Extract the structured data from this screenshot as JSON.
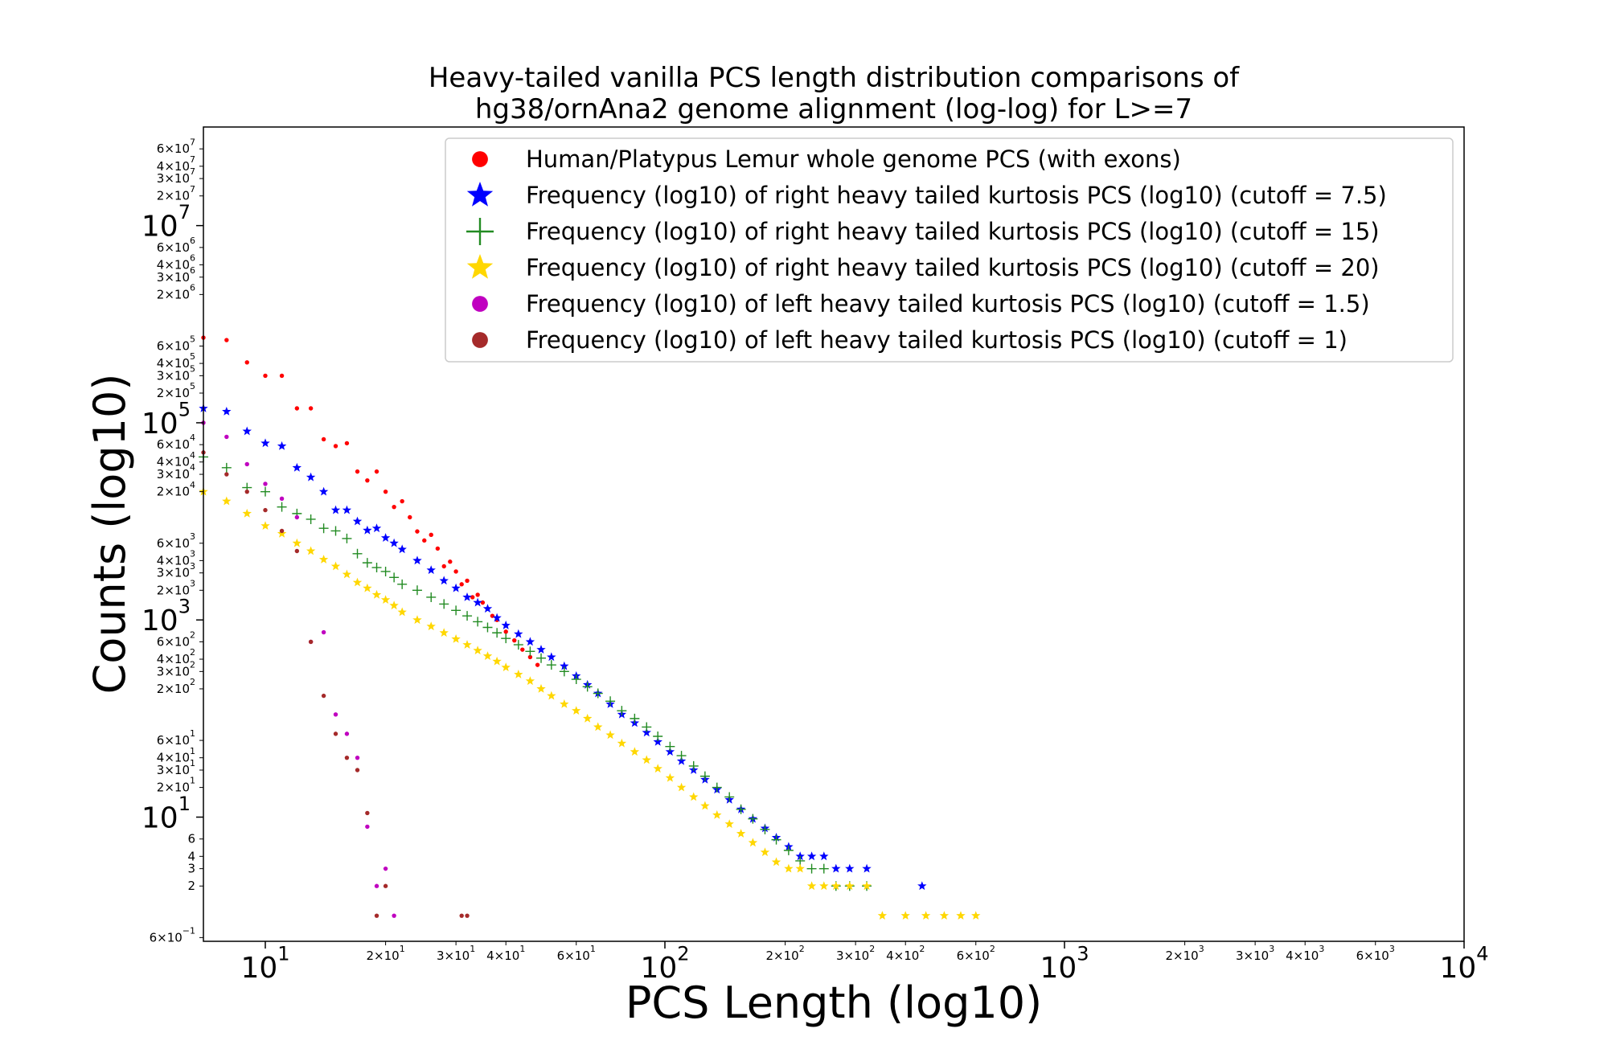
{
  "chart_data": {
    "type": "scatter",
    "title": "Heavy-tailed vanilla PCS length distribution comparisons of hg38/ornAna2 genome alignment (log-log) for L>=7",
    "title_lines": [
      "Heavy-tailed vanilla PCS length distribution comparisons of",
      "hg38/ornAna2 genome alignment (log-log) for L>=7"
    ],
    "xlabel": "PCS Length (log10)",
    "ylabel": "Counts (log10)",
    "xscale": "log",
    "yscale": "log",
    "xlim": [
      7,
      10000
    ],
    "ylim": [
      0.55,
      100000000
    ],
    "grid": false,
    "legend_position": "top-right",
    "x_major_ticks": [
      {
        "value": 10,
        "label": "10",
        "exp": "1"
      },
      {
        "value": 100,
        "label": "10",
        "exp": "2"
      },
      {
        "value": 1000,
        "label": "10",
        "exp": "3"
      },
      {
        "value": 10000,
        "label": "10",
        "exp": "4"
      }
    ],
    "x_minor_ticks": [
      {
        "value": 20,
        "label": "2×10",
        "exp": "1"
      },
      {
        "value": 30,
        "label": "3×10",
        "exp": "1"
      },
      {
        "value": 40,
        "label": "4×10",
        "exp": "1"
      },
      {
        "value": 60,
        "label": "6×10",
        "exp": "1"
      },
      {
        "value": 200,
        "label": "2×10",
        "exp": "2"
      },
      {
        "value": 300,
        "label": "3×10",
        "exp": "2"
      },
      {
        "value": 400,
        "label": "4×10",
        "exp": "2"
      },
      {
        "value": 600,
        "label": "6×10",
        "exp": "2"
      },
      {
        "value": 2000,
        "label": "2×10",
        "exp": "3"
      },
      {
        "value": 3000,
        "label": "3×10",
        "exp": "3"
      },
      {
        "value": 4000,
        "label": "4×10",
        "exp": "3"
      },
      {
        "value": 6000,
        "label": "6×10",
        "exp": "3"
      }
    ],
    "y_major_ticks": [
      {
        "value": 10,
        "label": "10",
        "exp": "1"
      },
      {
        "value": 1000,
        "label": "10",
        "exp": "3"
      },
      {
        "value": 100000,
        "label": "10",
        "exp": "5"
      },
      {
        "value": 10000000,
        "label": "10",
        "exp": "7"
      }
    ],
    "y_minor_ticks": [
      {
        "value": 0.6,
        "label": "6×10",
        "exp": "−1"
      },
      {
        "value": 2,
        "label": "2",
        "exp": ""
      },
      {
        "value": 3,
        "label": "3",
        "exp": ""
      },
      {
        "value": 4,
        "label": "4",
        "exp": ""
      },
      {
        "value": 6,
        "label": "6",
        "exp": ""
      },
      {
        "value": 20,
        "label": "2×10",
        "exp": "1"
      },
      {
        "value": 30,
        "label": "3×10",
        "exp": "1"
      },
      {
        "value": 40,
        "label": "4×10",
        "exp": "1"
      },
      {
        "value": 60,
        "label": "6×10",
        "exp": "1"
      },
      {
        "value": 200,
        "label": "2×10",
        "exp": "2"
      },
      {
        "value": 300,
        "label": "3×10",
        "exp": "2"
      },
      {
        "value": 400,
        "label": "4×10",
        "exp": "2"
      },
      {
        "value": 600,
        "label": "6×10",
        "exp": "2"
      },
      {
        "value": 2000,
        "label": "2×10",
        "exp": "3"
      },
      {
        "value": 3000,
        "label": "3×10",
        "exp": "3"
      },
      {
        "value": 4000,
        "label": "4×10",
        "exp": "3"
      },
      {
        "value": 6000,
        "label": "6×10",
        "exp": "3"
      },
      {
        "value": 20000,
        "label": "2×10",
        "exp": "4"
      },
      {
        "value": 30000,
        "label": "3×10",
        "exp": "4"
      },
      {
        "value": 40000,
        "label": "4×10",
        "exp": "4"
      },
      {
        "value": 60000,
        "label": "6×10",
        "exp": "4"
      },
      {
        "value": 200000,
        "label": "2×10",
        "exp": "5"
      },
      {
        "value": 300000,
        "label": "3×10",
        "exp": "5"
      },
      {
        "value": 400000,
        "label": "4×10",
        "exp": "5"
      },
      {
        "value": 600000,
        "label": "6×10",
        "exp": "5"
      },
      {
        "value": 2000000,
        "label": "2×10",
        "exp": "6"
      },
      {
        "value": 3000000,
        "label": "3×10",
        "exp": "6"
      },
      {
        "value": 4000000,
        "label": "4×10",
        "exp": "6"
      },
      {
        "value": 6000000,
        "label": "6×10",
        "exp": "6"
      },
      {
        "value": 20000000,
        "label": "2×10",
        "exp": "7"
      },
      {
        "value": 30000000,
        "label": "3×10",
        "exp": "7"
      },
      {
        "value": 40000000,
        "label": "4×10",
        "exp": "7"
      },
      {
        "value": 60000000,
        "label": "6×10",
        "exp": "7"
      }
    ],
    "series": [
      {
        "name": "Human/Platypus Lemur whole genome PCS (with exons)",
        "color": "#ff0000",
        "marker": "circle",
        "x": [
          7,
          8,
          9,
          10,
          11,
          12,
          13,
          14,
          15,
          16,
          17,
          18,
          19,
          20,
          21,
          22,
          23,
          24,
          25,
          26,
          27,
          28,
          29,
          30,
          31,
          32,
          33,
          34,
          35,
          36,
          37,
          38,
          40,
          42,
          44,
          46,
          48
        ],
        "y": [
          730000,
          690000,
          410000,
          300000,
          300000,
          140000,
          140000,
          68000,
          58000,
          62000,
          32000,
          26000,
          32000,
          20000,
          14000,
          16000,
          11000,
          7900,
          6400,
          7300,
          5300,
          3500,
          3900,
          3100,
          2300,
          2500,
          1700,
          1800,
          1500,
          1300,
          1100,
          1000,
          760,
          620,
          500,
          420,
          350
        ]
      },
      {
        "name": "Frequency (log10) of right heavy tailed kurtosis PCS (log10) (cutoff = 7.5)",
        "color": "#0000ff",
        "marker": "star",
        "x": [
          7,
          8,
          9,
          10,
          11,
          12,
          13,
          14,
          15,
          16,
          17,
          18,
          19,
          20,
          21,
          22,
          24,
          26,
          28,
          30,
          32,
          34,
          36,
          38,
          40,
          43,
          46,
          49,
          52,
          56,
          60,
          64,
          68,
          73,
          78,
          84,
          90,
          96,
          103,
          110,
          118,
          126,
          135,
          145,
          155,
          166,
          178,
          190,
          204,
          218,
          233,
          250,
          268,
          290,
          320,
          440
        ],
        "y": [
          140000,
          130000,
          82000,
          62000,
          58000,
          35000,
          28000,
          20000,
          13000,
          13000,
          10000,
          8100,
          8500,
          6800,
          6000,
          5200,
          4000,
          3200,
          2500,
          2100,
          1700,
          1500,
          1300,
          1050,
          880,
          720,
          600,
          500,
          420,
          340,
          270,
          220,
          180,
          140,
          110,
          90,
          72,
          58,
          46,
          37,
          30,
          24,
          19,
          15,
          12,
          9.6,
          7.7,
          6.2,
          5,
          4,
          4,
          4,
          3,
          3,
          3,
          2
        ]
      },
      {
        "name": "Frequency (log10) of right heavy tailed kurtosis PCS (log10) (cutoff = 15)",
        "color": "#228B22",
        "marker": "plus",
        "x": [
          7,
          8,
          9,
          10,
          11,
          12,
          13,
          14,
          15,
          16,
          17,
          18,
          19,
          20,
          21,
          22,
          24,
          26,
          28,
          30,
          32,
          34,
          36,
          38,
          40,
          43,
          46,
          49,
          52,
          56,
          60,
          64,
          68,
          73,
          78,
          84,
          90,
          96,
          103,
          110,
          118,
          126,
          135,
          145,
          155,
          166,
          178,
          190,
          204,
          218,
          233,
          250,
          268,
          290,
          320
        ],
        "y": [
          45000,
          35000,
          22000,
          20000,
          14000,
          12000,
          10500,
          8500,
          8000,
          6700,
          4700,
          3800,
          3400,
          3100,
          2700,
          2300,
          2000,
          1700,
          1450,
          1250,
          1100,
          960,
          840,
          740,
          650,
          560,
          480,
          410,
          350,
          300,
          250,
          210,
          180,
          150,
          120,
          100,
          82,
          66,
          52,
          42,
          33,
          26,
          20,
          16,
          12,
          9.6,
          7.5,
          5.9,
          4.6,
          3.6,
          3,
          3,
          2,
          2,
          2
        ]
      },
      {
        "name": "Frequency (log10) of right heavy tailed kurtosis PCS (log10) (cutoff = 20)",
        "color": "#ffd700",
        "marker": "star",
        "x": [
          7,
          8,
          9,
          10,
          11,
          12,
          13,
          14,
          15,
          16,
          17,
          18,
          19,
          20,
          21,
          22,
          24,
          26,
          28,
          30,
          32,
          34,
          36,
          38,
          40,
          43,
          46,
          49,
          52,
          56,
          60,
          64,
          68,
          73,
          78,
          84,
          90,
          96,
          103,
          110,
          118,
          126,
          135,
          145,
          155,
          166,
          178,
          190,
          204,
          218,
          233,
          250,
          268,
          290,
          320,
          350,
          400,
          450,
          500,
          550,
          600
        ],
        "y": [
          20000,
          16000,
          12000,
          9000,
          7500,
          6000,
          5000,
          4100,
          3500,
          2900,
          2400,
          2100,
          1800,
          1600,
          1400,
          1200,
          1000,
          860,
          740,
          640,
          560,
          490,
          430,
          380,
          330,
          280,
          240,
          200,
          170,
          140,
          120,
          100,
          82,
          68,
          56,
          46,
          38,
          31,
          25,
          20,
          16,
          13,
          10.5,
          8.5,
          6.8,
          5.5,
          4.4,
          3.5,
          3,
          3,
          2,
          2,
          2,
          2,
          2,
          1,
          1,
          1,
          1,
          1,
          1
        ]
      },
      {
        "name": "Frequency (log10) of left heavy tailed kurtosis PCS (log10) (cutoff = 1.5)",
        "color": "#c000c0",
        "marker": "circle",
        "x": [
          7,
          8,
          9,
          10,
          11,
          12,
          13,
          14,
          15,
          16,
          17,
          18,
          19,
          20,
          21
        ],
        "y": [
          100000,
          72000,
          38000,
          24000,
          17000,
          11000,
          600,
          750,
          110,
          70,
          40,
          8,
          2,
          3,
          1
        ]
      },
      {
        "name": "Frequency (log10) of left heavy tailed kurtosis PCS (log10) (cutoff = 1)",
        "color": "#a52a2a",
        "marker": "circle",
        "x": [
          7,
          8,
          9,
          10,
          11,
          12,
          13,
          14,
          15,
          16,
          17,
          18,
          19,
          20,
          31,
          32
        ],
        "y": [
          50000,
          30000,
          20000,
          13000,
          8000,
          5000,
          600,
          170,
          70,
          40,
          30,
          11,
          1,
          2,
          1,
          1
        ]
      }
    ]
  }
}
